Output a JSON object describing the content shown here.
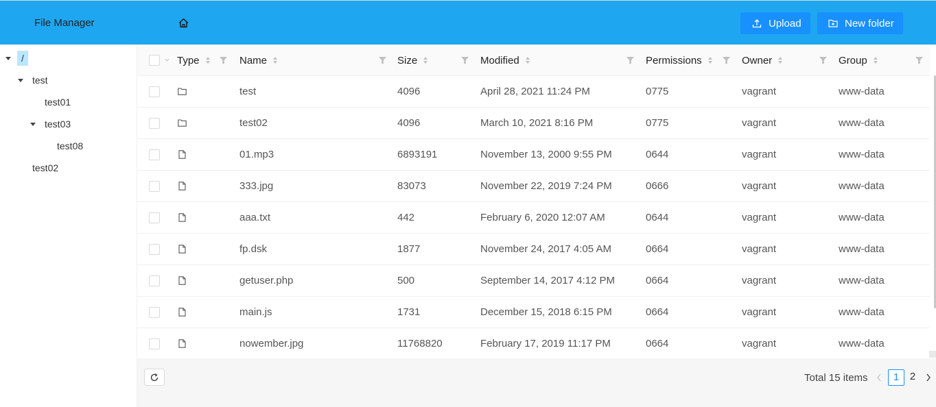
{
  "header": {
    "title": "File Manager",
    "upload_label": "Upload",
    "new_folder_label": "New folder",
    "accent": "#1ea7f0"
  },
  "tree": {
    "root": "/",
    "nodes": [
      {
        "label": "test",
        "expanded": true
      },
      {
        "label": "test01"
      },
      {
        "label": "test03",
        "expanded": true
      },
      {
        "label": "test08"
      },
      {
        "label": "test02"
      }
    ]
  },
  "table": {
    "columns": {
      "type": "Type",
      "name": "Name",
      "size": "Size",
      "modified": "Modified",
      "permissions": "Permissions",
      "owner": "Owner",
      "group": "Group"
    },
    "rows": [
      {
        "icon": "folder-icon",
        "name": "test",
        "size": "4096",
        "modified": "April 28, 2021 11:24 PM",
        "permissions": "0775",
        "owner": "vagrant",
        "group": "www-data"
      },
      {
        "icon": "folder-icon",
        "name": "test02",
        "size": "4096",
        "modified": "March 10, 2021 8:16 PM",
        "permissions": "0775",
        "owner": "vagrant",
        "group": "www-data"
      },
      {
        "icon": "file-icon",
        "name": "01.mp3",
        "size": "6893191",
        "modified": "November 13, 2000 9:55 PM",
        "permissions": "0644",
        "owner": "vagrant",
        "group": "www-data"
      },
      {
        "icon": "file-icon",
        "name": "333.jpg",
        "size": "83073",
        "modified": "November 22, 2019 7:24 PM",
        "permissions": "0666",
        "owner": "vagrant",
        "group": "www-data"
      },
      {
        "icon": "file-icon",
        "name": "aaa.txt",
        "size": "442",
        "modified": "February 6, 2020 12:07 AM",
        "permissions": "0644",
        "owner": "vagrant",
        "group": "www-data"
      },
      {
        "icon": "file-icon",
        "name": "fp.dsk",
        "size": "1877",
        "modified": "November 24, 2017 4:05 AM",
        "permissions": "0664",
        "owner": "vagrant",
        "group": "www-data"
      },
      {
        "icon": "file-icon",
        "name": "getuser.php",
        "size": "500",
        "modified": "September 14, 2017 4:12 PM",
        "permissions": "0664",
        "owner": "vagrant",
        "group": "www-data"
      },
      {
        "icon": "file-icon",
        "name": "main.js",
        "size": "1731",
        "modified": "December 15, 2018 6:15 PM",
        "permissions": "0664",
        "owner": "vagrant",
        "group": "www-data"
      },
      {
        "icon": "file-icon",
        "name": "nowember.jpg",
        "size": "11768820",
        "modified": "February 17, 2019 11:17 PM",
        "permissions": "0664",
        "owner": "vagrant",
        "group": "www-data"
      }
    ]
  },
  "footer": {
    "total": "Total 15 items",
    "pages": [
      "1",
      "2"
    ],
    "current_page": "1"
  }
}
